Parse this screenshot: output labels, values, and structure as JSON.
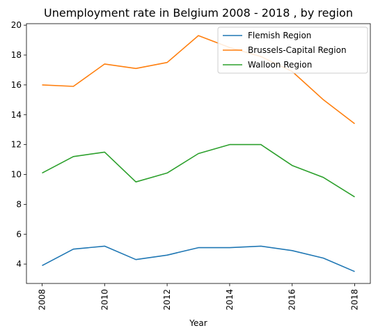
{
  "chart_data": {
    "type": "line",
    "title": "Unemployment rate in Belgium 2008 - 2018 , by region",
    "xlabel": "Year",
    "ylabel": "",
    "x": [
      2008,
      2009,
      2010,
      2011,
      2012,
      2013,
      2014,
      2015,
      2016,
      2017,
      2018
    ],
    "xticks": [
      "2008",
      "2010",
      "2012",
      "2014",
      "2016",
      "2018"
    ],
    "yticks": [
      "4",
      "6",
      "8",
      "10",
      "12",
      "14",
      "16",
      "18",
      "20"
    ],
    "xlim": [
      2007.5,
      2018.5
    ],
    "ylim": [
      2.7,
      20.1
    ],
    "grid": false,
    "legend_position": "top-right",
    "series": [
      {
        "name": "Flemish Region",
        "color": "#1f77b4",
        "values": [
          3.9,
          5.0,
          5.2,
          4.3,
          4.6,
          5.1,
          5.1,
          5.2,
          4.9,
          4.4,
          3.5
        ]
      },
      {
        "name": "Brussels-Capital Region",
        "color": "#ff7f0e",
        "values": [
          16.0,
          15.9,
          17.4,
          17.1,
          17.5,
          19.3,
          18.5,
          17.9,
          16.9,
          15.0,
          13.4
        ]
      },
      {
        "name": "Walloon Region",
        "color": "#2ca02c",
        "values": [
          10.1,
          11.2,
          11.5,
          9.5,
          10.1,
          11.4,
          12.0,
          12.0,
          10.6,
          9.8,
          8.5
        ]
      }
    ]
  }
}
